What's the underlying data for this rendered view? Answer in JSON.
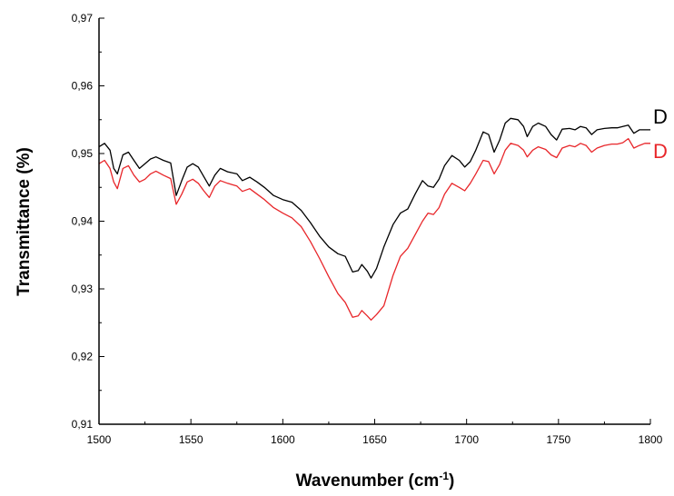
{
  "chart_data": {
    "type": "line",
    "title": "",
    "xlabel": "Wavenumber (cm",
    "xlabel_sup": "-1",
    "xlabel_close": ")",
    "ylabel": "Transmittance (%)",
    "xlim": [
      1500,
      1800
    ],
    "ylim": [
      0.91,
      0.97
    ],
    "xticks": [
      1500,
      1550,
      1600,
      1650,
      1700,
      1750,
      1800
    ],
    "xtick_labels": [
      "1500",
      "1550",
      "1600",
      "1650",
      "1700",
      "1750",
      "1800"
    ],
    "yticks": [
      0.91,
      0.92,
      0.93,
      0.94,
      0.95,
      0.96,
      0.97
    ],
    "ytick_labels": [
      "0,91",
      "0,92",
      "0,93",
      "0,94",
      "0,95",
      "0,96",
      "0,97"
    ],
    "grid": false,
    "legend": "series names printed at right end of lines (partially clipped)",
    "series": [
      {
        "name": "D",
        "color": "#000000",
        "points": [
          [
            1500,
            0.951
          ],
          [
            1503,
            0.9515
          ],
          [
            1506,
            0.9505
          ],
          [
            1508,
            0.9478
          ],
          [
            1510,
            0.947
          ],
          [
            1513,
            0.9498
          ],
          [
            1516,
            0.9502
          ],
          [
            1519,
            0.949
          ],
          [
            1522,
            0.9478
          ],
          [
            1525,
            0.9485
          ],
          [
            1528,
            0.9492
          ],
          [
            1531,
            0.9495
          ],
          [
            1535,
            0.949
          ],
          [
            1539,
            0.9486
          ],
          [
            1542,
            0.9438
          ],
          [
            1545,
            0.946
          ],
          [
            1548,
            0.948
          ],
          [
            1551,
            0.9485
          ],
          [
            1554,
            0.948
          ],
          [
            1557,
            0.9466
          ],
          [
            1560,
            0.9452
          ],
          [
            1563,
            0.9468
          ],
          [
            1566,
            0.9478
          ],
          [
            1570,
            0.9473
          ],
          [
            1575,
            0.947
          ],
          [
            1578,
            0.946
          ],
          [
            1582,
            0.9465
          ],
          [
            1586,
            0.9458
          ],
          [
            1590,
            0.945
          ],
          [
            1595,
            0.9438
          ],
          [
            1600,
            0.9432
          ],
          [
            1605,
            0.9428
          ],
          [
            1610,
            0.9416
          ],
          [
            1615,
            0.9398
          ],
          [
            1620,
            0.9378
          ],
          [
            1625,
            0.9362
          ],
          [
            1630,
            0.9352
          ],
          [
            1634,
            0.9348
          ],
          [
            1638,
            0.9325
          ],
          [
            1641,
            0.9327
          ],
          [
            1643,
            0.9336
          ],
          [
            1646,
            0.9326
          ],
          [
            1648,
            0.9316
          ],
          [
            1651,
            0.933
          ],
          [
            1655,
            0.9362
          ],
          [
            1660,
            0.9395
          ],
          [
            1664,
            0.9412
          ],
          [
            1668,
            0.9418
          ],
          [
            1672,
            0.944
          ],
          [
            1676,
            0.946
          ],
          [
            1679,
            0.9452
          ],
          [
            1682,
            0.945
          ],
          [
            1685,
            0.9462
          ],
          [
            1688,
            0.9482
          ],
          [
            1692,
            0.9497
          ],
          [
            1696,
            0.949
          ],
          [
            1699,
            0.948
          ],
          [
            1702,
            0.9488
          ],
          [
            1705,
            0.9505
          ],
          [
            1709,
            0.9532
          ],
          [
            1712,
            0.9528
          ],
          [
            1715,
            0.9502
          ],
          [
            1718,
            0.952
          ],
          [
            1721,
            0.9545
          ],
          [
            1724,
            0.9552
          ],
          [
            1728,
            0.955
          ],
          [
            1731,
            0.954
          ],
          [
            1733,
            0.9525
          ],
          [
            1736,
            0.954
          ],
          [
            1739,
            0.9545
          ],
          [
            1743,
            0.954
          ],
          [
            1746,
            0.9528
          ],
          [
            1749,
            0.952
          ],
          [
            1752,
            0.9536
          ],
          [
            1756,
            0.9537
          ],
          [
            1759,
            0.9535
          ],
          [
            1762,
            0.954
          ],
          [
            1765,
            0.9538
          ],
          [
            1768,
            0.9528
          ],
          [
            1771,
            0.9535
          ],
          [
            1775,
            0.9537
          ],
          [
            1779,
            0.9538
          ],
          [
            1782,
            0.9538
          ],
          [
            1785,
            0.954
          ],
          [
            1788,
            0.9542
          ],
          [
            1791,
            0.953
          ],
          [
            1794,
            0.9535
          ],
          [
            1797,
            0.9535
          ],
          [
            1800,
            0.9535
          ]
        ]
      },
      {
        "name": "D",
        "color": "#e8262a",
        "points": [
          [
            1500,
            0.9485
          ],
          [
            1503,
            0.949
          ],
          [
            1506,
            0.9478
          ],
          [
            1508,
            0.9458
          ],
          [
            1510,
            0.9448
          ],
          [
            1513,
            0.9478
          ],
          [
            1516,
            0.9482
          ],
          [
            1519,
            0.9468
          ],
          [
            1522,
            0.9458
          ],
          [
            1525,
            0.9462
          ],
          [
            1528,
            0.947
          ],
          [
            1531,
            0.9474
          ],
          [
            1535,
            0.9468
          ],
          [
            1539,
            0.9463
          ],
          [
            1542,
            0.9425
          ],
          [
            1545,
            0.944
          ],
          [
            1548,
            0.9458
          ],
          [
            1551,
            0.9462
          ],
          [
            1554,
            0.9456
          ],
          [
            1557,
            0.9445
          ],
          [
            1560,
            0.9435
          ],
          [
            1563,
            0.9452
          ],
          [
            1566,
            0.946
          ],
          [
            1570,
            0.9456
          ],
          [
            1575,
            0.9452
          ],
          [
            1578,
            0.9444
          ],
          [
            1582,
            0.9448
          ],
          [
            1586,
            0.944
          ],
          [
            1590,
            0.9432
          ],
          [
            1595,
            0.942
          ],
          [
            1600,
            0.9412
          ],
          [
            1605,
            0.9405
          ],
          [
            1610,
            0.9392
          ],
          [
            1615,
            0.937
          ],
          [
            1620,
            0.9345
          ],
          [
            1625,
            0.9318
          ],
          [
            1630,
            0.9293
          ],
          [
            1634,
            0.928
          ],
          [
            1638,
            0.9258
          ],
          [
            1641,
            0.926
          ],
          [
            1643,
            0.9268
          ],
          [
            1646,
            0.926
          ],
          [
            1648,
            0.9254
          ],
          [
            1651,
            0.9262
          ],
          [
            1655,
            0.9275
          ],
          [
            1660,
            0.932
          ],
          [
            1664,
            0.9348
          ],
          [
            1668,
            0.936
          ],
          [
            1672,
            0.938
          ],
          [
            1676,
            0.94
          ],
          [
            1679,
            0.9412
          ],
          [
            1682,
            0.941
          ],
          [
            1685,
            0.942
          ],
          [
            1688,
            0.944
          ],
          [
            1692,
            0.9456
          ],
          [
            1696,
            0.945
          ],
          [
            1699,
            0.9445
          ],
          [
            1702,
            0.9456
          ],
          [
            1705,
            0.947
          ],
          [
            1709,
            0.949
          ],
          [
            1712,
            0.9488
          ],
          [
            1715,
            0.947
          ],
          [
            1718,
            0.9484
          ],
          [
            1721,
            0.9505
          ],
          [
            1724,
            0.9515
          ],
          [
            1728,
            0.9512
          ],
          [
            1731,
            0.9505
          ],
          [
            1733,
            0.9495
          ],
          [
            1736,
            0.9505
          ],
          [
            1739,
            0.951
          ],
          [
            1743,
            0.9506
          ],
          [
            1746,
            0.9498
          ],
          [
            1749,
            0.9494
          ],
          [
            1752,
            0.9508
          ],
          [
            1756,
            0.9512
          ],
          [
            1759,
            0.951
          ],
          [
            1762,
            0.9515
          ],
          [
            1765,
            0.9512
          ],
          [
            1768,
            0.9502
          ],
          [
            1771,
            0.9508
          ],
          [
            1775,
            0.9512
          ],
          [
            1779,
            0.9514
          ],
          [
            1782,
            0.9514
          ],
          [
            1785,
            0.9516
          ],
          [
            1788,
            0.9522
          ],
          [
            1791,
            0.9508
          ],
          [
            1794,
            0.9512
          ],
          [
            1797,
            0.9515
          ],
          [
            1800,
            0.9515
          ]
        ]
      }
    ]
  }
}
